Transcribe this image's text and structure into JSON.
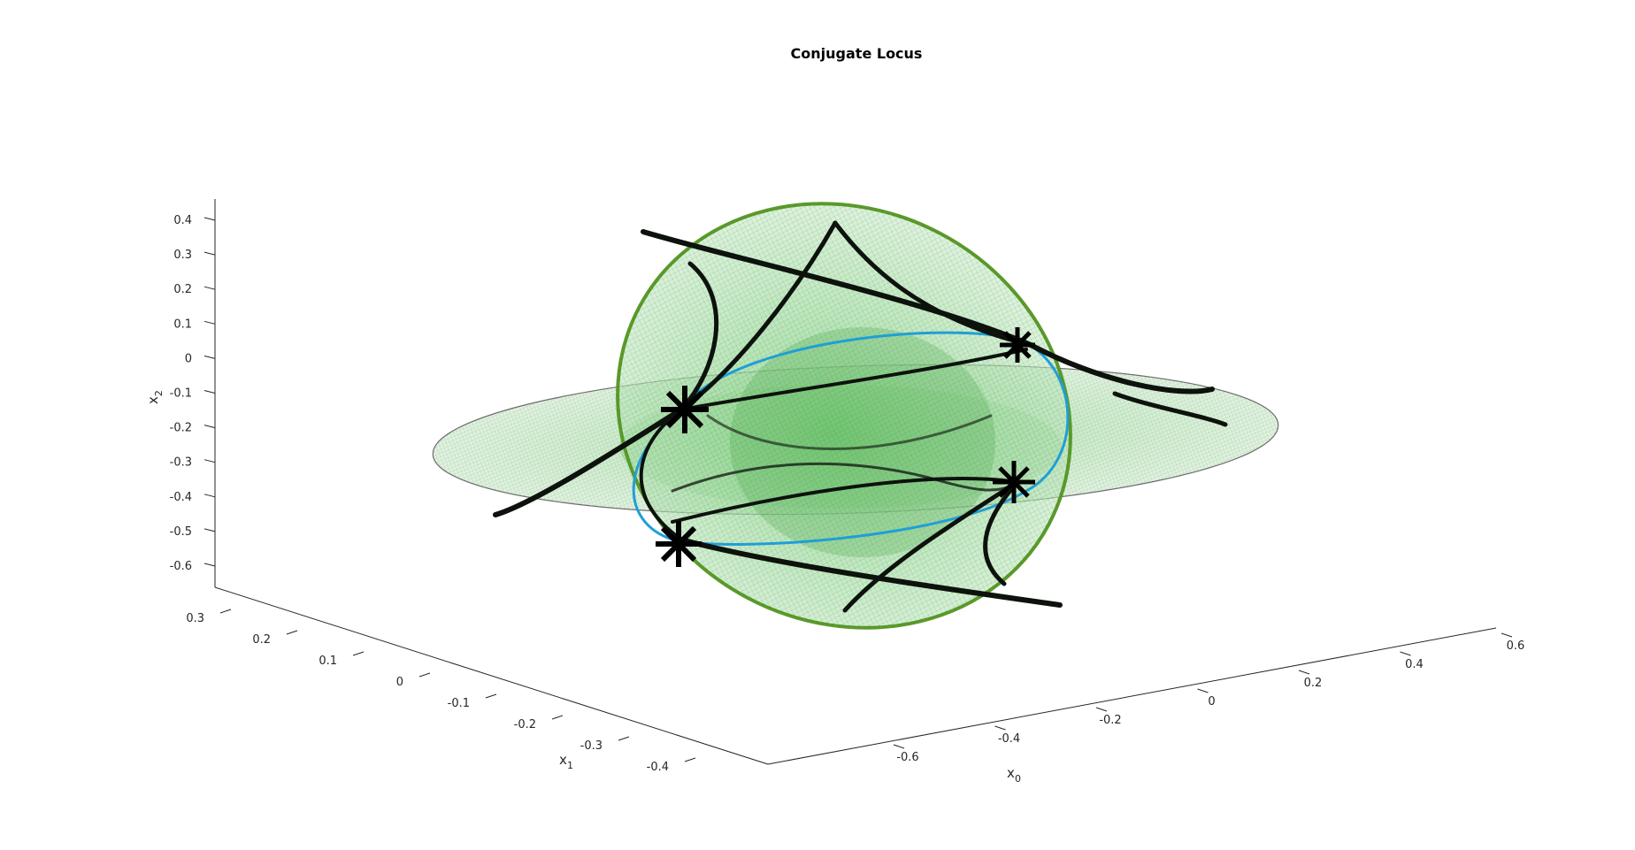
{
  "chart_data": {
    "type": "surface3d",
    "title": "Conjugate Locus",
    "axes": {
      "x0": {
        "label_main": "x",
        "label_sub": "0",
        "range": [
          -0.75,
          0.65
        ],
        "ticks": [
          "-0.6",
          "-0.4",
          "-0.2",
          "0",
          "0.2",
          "0.4",
          "0.6"
        ]
      },
      "x1": {
        "label_main": "x",
        "label_sub": "1",
        "range": [
          -0.45,
          0.35
        ],
        "ticks": [
          "-0.4",
          "-0.3",
          "-0.2",
          "-0.1",
          "0",
          "0.1",
          "0.2",
          "0.3"
        ]
      },
      "x2": {
        "label_main": "x",
        "label_sub": "2",
        "range": [
          -0.65,
          0.45
        ],
        "ticks": [
          "-0.6",
          "-0.5",
          "-0.4",
          "-0.3",
          "-0.2",
          "-0.1",
          "0",
          "0.1",
          "0.2",
          "0.3",
          "0.4"
        ]
      }
    },
    "surfaces": [
      {
        "name": "tilted ellipsoid section",
        "color": "#8fdc8f",
        "edge_color": "#5a9a2a"
      },
      {
        "name": "horizontal ellipsoid section",
        "color": "#a6e0a6",
        "edge_color": "#7a7a7a"
      }
    ],
    "curves": [
      {
        "name": "boundary ellipse",
        "color": "#1f9fd6"
      },
      {
        "name": "conjugate locus curves",
        "color": "#0a0a0a"
      }
    ],
    "markers": {
      "symbol": "asterisk",
      "color": "#000000",
      "count": 4
    },
    "grid": false,
    "legend": "none"
  }
}
